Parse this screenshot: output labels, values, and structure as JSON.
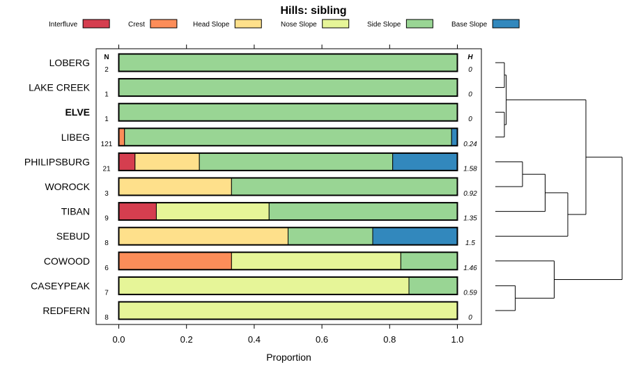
{
  "chart_data": {
    "type": "bar",
    "stacked": true,
    "orientation": "horizontal",
    "title": "Hills: sibling",
    "xlabel": "Proportion",
    "ylabel": "",
    "xlim": [
      0,
      1
    ],
    "xticks": [
      0.0,
      0.2,
      0.4,
      0.6,
      0.8,
      1.0
    ],
    "xtick_labels": [
      "0.0",
      "0.2",
      "0.4",
      "0.6",
      "0.8",
      "1.0"
    ],
    "n_header": "N",
    "h_header": "H",
    "categories": [
      "LOBERG",
      "LAKE CREEK",
      "ELVE",
      "LIBEG",
      "PHILIPSBURG",
      "WOROCK",
      "TIBAN",
      "SEBUD",
      "COWOOD",
      "CASEYPEAK",
      "REDFERN"
    ],
    "highlight": "ELVE",
    "n": [
      "2",
      "1",
      "1",
      "121",
      "21",
      "3",
      "9",
      "8",
      "6",
      "7",
      "8"
    ],
    "h": [
      "0",
      "0",
      "0",
      "0.24",
      "1.58",
      "0.92",
      "1.35",
      "1.5",
      "1.46",
      "0.59",
      "0"
    ],
    "series": [
      {
        "name": "Interfluve",
        "color": "#D53E4F",
        "values": [
          0,
          0,
          0,
          0,
          0.048,
          0,
          0.111,
          0,
          0,
          0,
          0
        ]
      },
      {
        "name": "Crest",
        "color": "#FC8D59",
        "values": [
          0,
          0,
          0,
          0.017,
          0,
          0,
          0,
          0,
          0.333,
          0,
          0
        ]
      },
      {
        "name": "Head Slope",
        "color": "#FEE08B",
        "values": [
          0,
          0,
          0,
          0,
          0.19,
          0.333,
          0,
          0.5,
          0,
          0,
          0
        ]
      },
      {
        "name": "Nose Slope",
        "color": "#E6F598",
        "values": [
          0,
          0,
          0,
          0,
          0,
          0,
          0.333,
          0,
          0.5,
          0.857,
          1.0
        ]
      },
      {
        "name": "Side Slope",
        "color": "#99D594",
        "values": [
          1.0,
          1.0,
          1.0,
          0.966,
          0.571,
          0.667,
          0.556,
          0.25,
          0.167,
          0.143,
          0
        ]
      },
      {
        "name": "Base Slope",
        "color": "#3288BD",
        "values": [
          0,
          0,
          0,
          0.017,
          0.19,
          0,
          0,
          0.25,
          0,
          0,
          0
        ]
      }
    ],
    "dendrogram": {
      "leaves": [
        "LOBERG",
        "LAKE CREEK",
        "ELVE",
        "LIBEG",
        "PHILIPSBURG",
        "WOROCK",
        "TIBAN",
        "SEBUD",
        "COWOOD",
        "CASEYPEAK",
        "REDFERN"
      ],
      "merges": [
        {
          "a": 0,
          "b": 1,
          "height": 0.1
        },
        {
          "a": 2,
          "b": 3,
          "height": 0.1
        },
        {
          "a": "m0",
          "b": "m1",
          "height": 0.12
        },
        {
          "a": 4,
          "b": 5,
          "height": 0.3
        },
        {
          "a": "m3",
          "b": 6,
          "height": 0.55
        },
        {
          "a": "m4",
          "b": 7,
          "height": 0.8
        },
        {
          "a": "m2",
          "b": "m5",
          "height": 1.0
        },
        {
          "a": 9,
          "b": 10,
          "height": 0.22
        },
        {
          "a": 8,
          "b": "m7",
          "height": 0.65
        },
        {
          "a": "m6",
          "b": "m8",
          "height": 1.4
        }
      ]
    }
  }
}
